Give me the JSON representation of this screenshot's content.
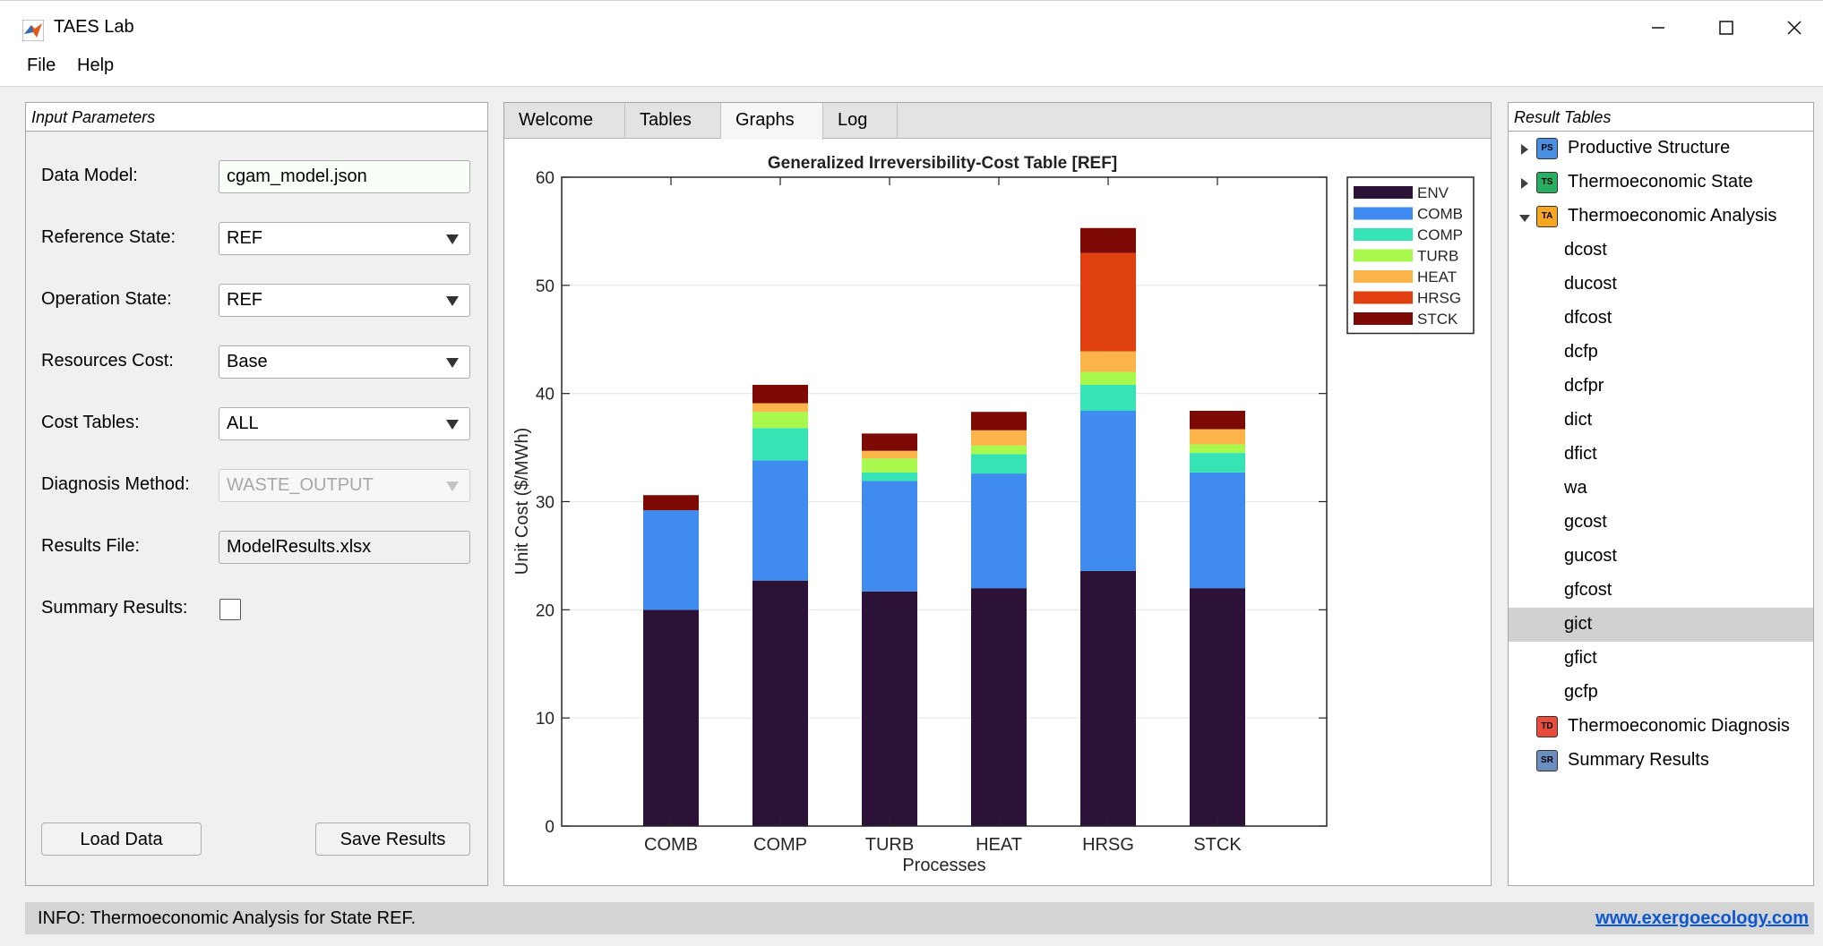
{
  "window": {
    "title": "TAES Lab",
    "controls": {
      "minimize": "—",
      "maximize": "☐",
      "close": "✕"
    }
  },
  "menu": [
    "File",
    "Help"
  ],
  "input_panel": {
    "title": "Input Parameters",
    "fields": {
      "data_model": {
        "label": "Data Model:",
        "value": "cgam_model.json"
      },
      "reference_state": {
        "label": "Reference State:",
        "value": "REF"
      },
      "operation_state": {
        "label": "Operation State:",
        "value": "REF"
      },
      "resources_cost": {
        "label": "Resources Cost:",
        "value": "Base"
      },
      "cost_tables": {
        "label": "Cost Tables:",
        "value": "ALL"
      },
      "diagnosis_method": {
        "label": "Diagnosis Method:",
        "value": "WASTE_OUTPUT"
      },
      "results_file": {
        "label": "Results File:",
        "value": "ModelResults.xlsx"
      },
      "summary_results": {
        "label": "Summary Results:",
        "checked": false
      }
    },
    "buttons": {
      "load": "Load Data",
      "save": "Save Results"
    }
  },
  "tabs": [
    "Welcome",
    "Tables",
    "Graphs",
    "Log"
  ],
  "active_tab": "Graphs",
  "result_panel": {
    "title": "Result Tables",
    "groups": {
      "ps": {
        "badge": "PS",
        "label": "Productive Structure",
        "color": "#4a90e2"
      },
      "ts": {
        "badge": "TS",
        "label": "Thermoeconomic State",
        "color": "#27ae60"
      },
      "ta": {
        "badge": "TA",
        "label": "Thermoeconomic Analysis",
        "color": "#f5a623"
      },
      "td": {
        "badge": "TD",
        "label": "Thermoeconomic Diagnosis",
        "color": "#e74c3c"
      },
      "sr": {
        "badge": "SR",
        "label": "Summary Results",
        "color": "#6c8ebf"
      }
    },
    "ta_children": [
      "dcost",
      "ducost",
      "dfcost",
      "dcfp",
      "dcfpr",
      "dict",
      "dfict",
      "wa",
      "gcost",
      "gucost",
      "gfcost",
      "gict",
      "gfict",
      "gcfp"
    ],
    "selected": "gict"
  },
  "status": {
    "text": "INFO: Thermoeconomic Analysis for State REF.",
    "link": "www.exergoecology.com"
  },
  "chart_data": {
    "type": "bar",
    "stacked": true,
    "title": "Generalized Irreversibility-Cost Table [REF]",
    "xlabel": "Processes",
    "ylabel": "Unit Cost ($/MWh)",
    "categories": [
      "COMB",
      "COMP",
      "TURB",
      "HEAT",
      "HRSG",
      "STCK"
    ],
    "ylim": [
      0,
      60
    ],
    "yticks": [
      0,
      10,
      20,
      30,
      40,
      50,
      60
    ],
    "grid": "horizontal",
    "legend_position": "top-right",
    "series": [
      {
        "name": "ENV",
        "color": "#2d1238",
        "values": [
          20.0,
          22.7,
          21.7,
          22.0,
          23.6,
          22.0
        ]
      },
      {
        "name": "COMB",
        "color": "#3f8bf0",
        "values": [
          9.2,
          11.1,
          10.2,
          10.6,
          14.8,
          10.7
        ]
      },
      {
        "name": "COMP",
        "color": "#35e3b4",
        "values": [
          0.0,
          3.0,
          0.8,
          1.8,
          2.4,
          1.8
        ]
      },
      {
        "name": "TURB",
        "color": "#a8f84d",
        "values": [
          0.0,
          1.5,
          1.3,
          0.8,
          1.2,
          0.8
        ]
      },
      {
        "name": "HEAT",
        "color": "#fbb44a",
        "values": [
          0.0,
          0.8,
          0.7,
          1.4,
          1.9,
          1.4
        ]
      },
      {
        "name": "HRSG",
        "color": "#e0400f",
        "values": [
          0.0,
          0.0,
          0.0,
          0.0,
          9.1,
          0.0
        ]
      },
      {
        "name": "STCK",
        "color": "#7d0a05",
        "values": [
          1.4,
          1.7,
          1.6,
          1.7,
          2.3,
          1.7
        ]
      }
    ]
  }
}
